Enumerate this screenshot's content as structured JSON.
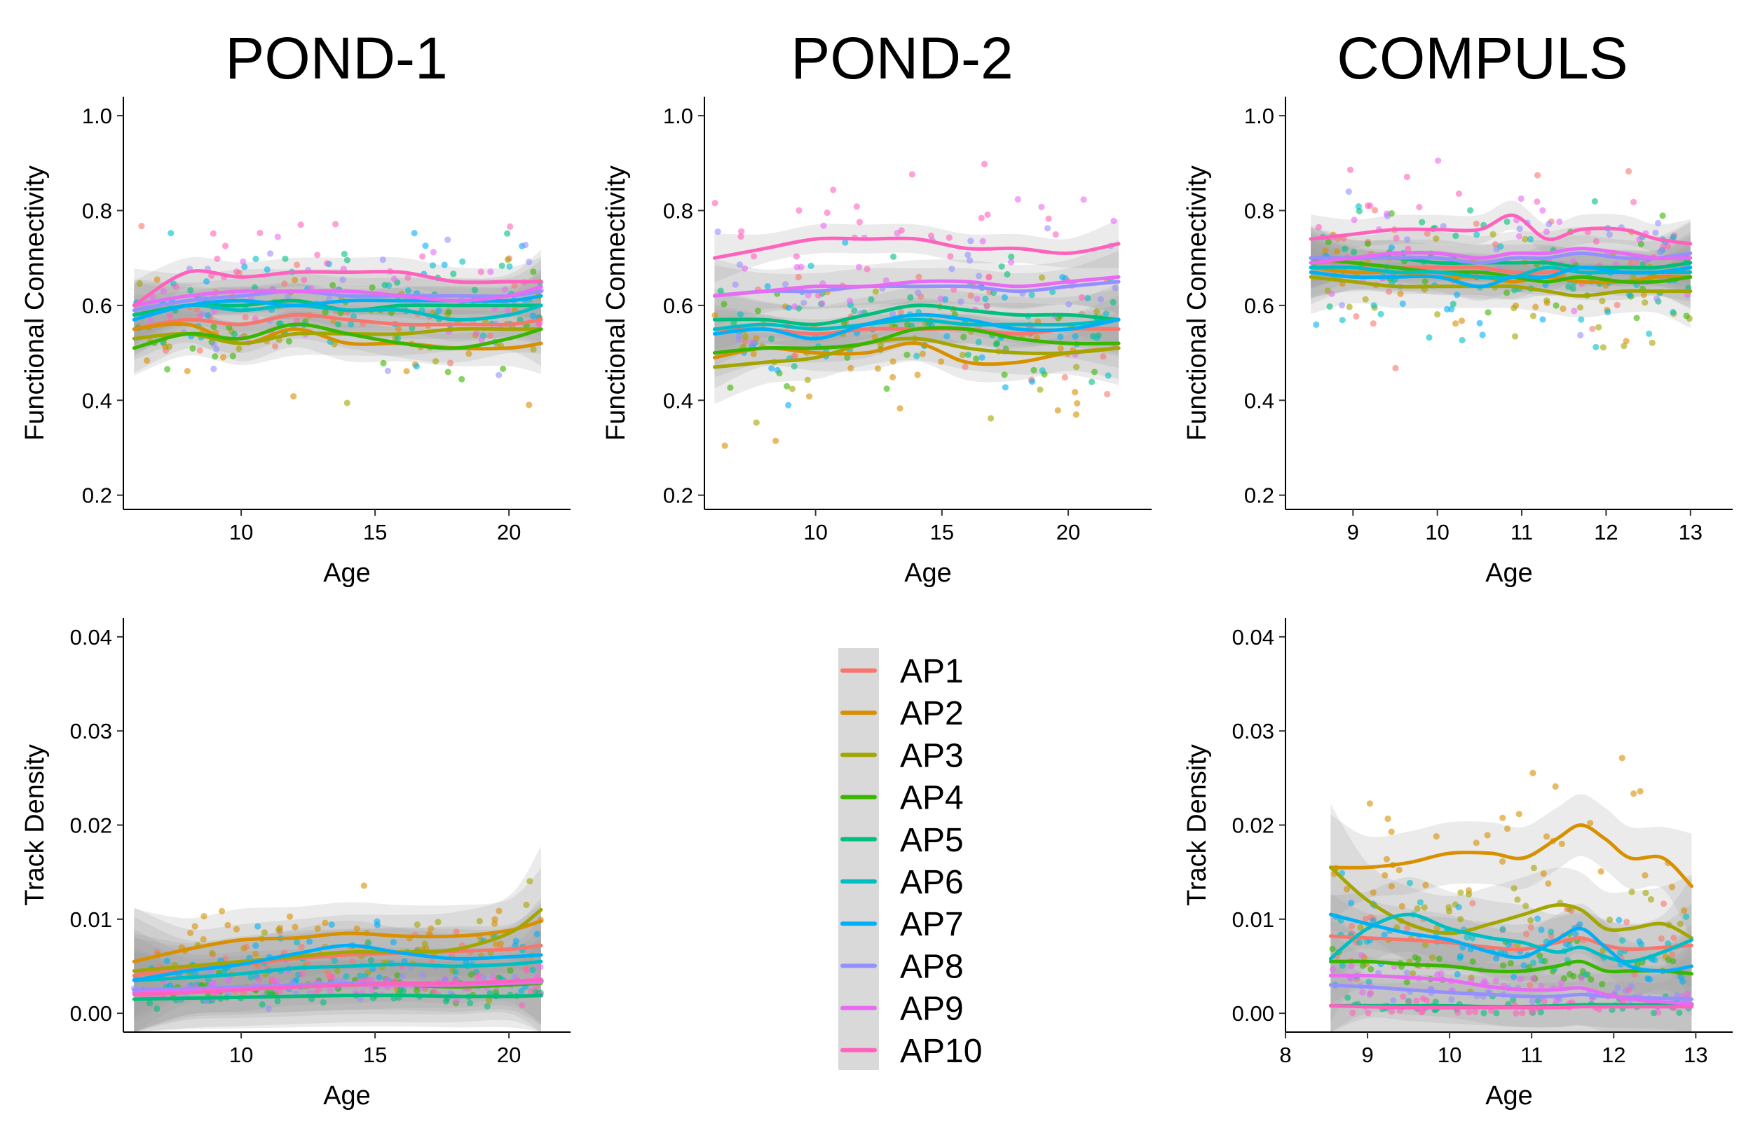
{
  "panel_titles": [
    "POND-1",
    "POND-2",
    "COMPULS"
  ],
  "legend": {
    "entries": [
      {
        "name": "AP1",
        "color": "#F8766D"
      },
      {
        "name": "AP2",
        "color": "#D89000"
      },
      {
        "name": "AP3",
        "color": "#A3A500"
      },
      {
        "name": "AP4",
        "color": "#39B600"
      },
      {
        "name": "AP5",
        "color": "#00BF7D"
      },
      {
        "name": "AP6",
        "color": "#00BFC4"
      },
      {
        "name": "AP7",
        "color": "#00B0F6"
      },
      {
        "name": "AP8",
        "color": "#9590FF"
      },
      {
        "name": "AP9",
        "color": "#E76BF3"
      },
      {
        "name": "AP10",
        "color": "#FF62BC"
      }
    ]
  },
  "chart_data": [
    {
      "id": "pond1-fc",
      "type": "line",
      "title": "POND-1",
      "xlabel": "Age",
      "ylabel": "Functional Connectivity",
      "xlim": [
        5.6,
        22.3
      ],
      "ylim": [
        0.17,
        1.04
      ],
      "xticks": [
        10,
        15,
        20
      ],
      "yticks": [
        0.2,
        0.4,
        0.6,
        0.8,
        1.0
      ],
      "ytick_labels": [
        "0.2",
        "0.4",
        "0.6",
        "0.8",
        "1.0"
      ],
      "grid": false,
      "confidence_band": true,
      "x": [
        6,
        8,
        10,
        12,
        14,
        16,
        18,
        20,
        21.2
      ],
      "series": [
        {
          "name": "AP1",
          "values": [
            0.55,
            0.57,
            0.56,
            0.58,
            0.57,
            0.56,
            0.56,
            0.56,
            0.57
          ]
        },
        {
          "name": "AP2",
          "values": [
            0.55,
            0.56,
            0.52,
            0.55,
            0.52,
            0.52,
            0.51,
            0.51,
            0.52
          ]
        },
        {
          "name": "AP3",
          "values": [
            0.53,
            0.54,
            0.52,
            0.54,
            0.54,
            0.54,
            0.55,
            0.55,
            0.55
          ]
        },
        {
          "name": "AP4",
          "values": [
            0.51,
            0.54,
            0.53,
            0.56,
            0.54,
            0.52,
            0.51,
            0.53,
            0.55
          ]
        },
        {
          "name": "AP5",
          "values": [
            0.58,
            0.6,
            0.6,
            0.61,
            0.59,
            0.6,
            0.6,
            0.6,
            0.6
          ]
        },
        {
          "name": "AP6",
          "values": [
            0.57,
            0.6,
            0.59,
            0.6,
            0.59,
            0.59,
            0.57,
            0.58,
            0.6
          ]
        },
        {
          "name": "AP7",
          "values": [
            0.57,
            0.6,
            0.61,
            0.6,
            0.61,
            0.61,
            0.61,
            0.61,
            0.62
          ]
        },
        {
          "name": "AP8",
          "values": [
            0.59,
            0.61,
            0.62,
            0.63,
            0.62,
            0.62,
            0.62,
            0.62,
            0.63
          ]
        },
        {
          "name": "AP9",
          "values": [
            0.6,
            0.62,
            0.63,
            0.63,
            0.63,
            0.62,
            0.61,
            0.62,
            0.64
          ]
        },
        {
          "name": "AP10",
          "values": [
            0.6,
            0.67,
            0.66,
            0.67,
            0.67,
            0.67,
            0.65,
            0.65,
            0.65
          ]
        }
      ]
    },
    {
      "id": "pond2-fc",
      "type": "line",
      "title": "POND-2",
      "xlabel": "Age",
      "ylabel": "Functional Connectivity",
      "xlim": [
        5.6,
        23.3
      ],
      "ylim": [
        0.17,
        1.04
      ],
      "xticks": [
        10,
        15,
        20
      ],
      "yticks": [
        0.2,
        0.4,
        0.6,
        0.8,
        1.0
      ],
      "ytick_labels": [
        "0.2",
        "0.4",
        "0.6",
        "0.8",
        "1.0"
      ],
      "grid": false,
      "confidence_band": true,
      "x": [
        6,
        8,
        10,
        12,
        14,
        16,
        18,
        20,
        22
      ],
      "series": [
        {
          "name": "AP1",
          "values": [
            0.55,
            0.55,
            0.54,
            0.55,
            0.55,
            0.55,
            0.54,
            0.55,
            0.55
          ]
        },
        {
          "name": "AP2",
          "values": [
            0.49,
            0.51,
            0.5,
            0.5,
            0.52,
            0.48,
            0.48,
            0.5,
            0.51
          ]
        },
        {
          "name": "AP3",
          "values": [
            0.47,
            0.48,
            0.49,
            0.52,
            0.53,
            0.51,
            0.5,
            0.5,
            0.51
          ]
        },
        {
          "name": "AP4",
          "values": [
            0.5,
            0.51,
            0.51,
            0.52,
            0.55,
            0.55,
            0.53,
            0.52,
            0.52
          ]
        },
        {
          "name": "AP5",
          "values": [
            0.57,
            0.57,
            0.56,
            0.58,
            0.6,
            0.59,
            0.58,
            0.58,
            0.57
          ]
        },
        {
          "name": "AP6",
          "values": [
            0.55,
            0.56,
            0.55,
            0.56,
            0.57,
            0.56,
            0.56,
            0.56,
            0.57
          ]
        },
        {
          "name": "AP7",
          "values": [
            0.54,
            0.55,
            0.53,
            0.56,
            0.58,
            0.57,
            0.55,
            0.55,
            0.57
          ]
        },
        {
          "name": "AP8",
          "values": [
            0.62,
            0.63,
            0.63,
            0.64,
            0.64,
            0.64,
            0.63,
            0.64,
            0.65
          ]
        },
        {
          "name": "AP9",
          "values": [
            0.62,
            0.63,
            0.64,
            0.64,
            0.65,
            0.65,
            0.64,
            0.65,
            0.66
          ]
        },
        {
          "name": "AP10",
          "values": [
            0.7,
            0.72,
            0.74,
            0.74,
            0.74,
            0.72,
            0.72,
            0.71,
            0.73
          ]
        }
      ]
    },
    {
      "id": "compuls-fc",
      "type": "line",
      "title": "COMPULS",
      "xlabel": "Age",
      "ylabel": "Functional Connectivity",
      "xlim": [
        8.2,
        13.5
      ],
      "ylim": [
        0.17,
        1.04
      ],
      "xticks": [
        9,
        10,
        11,
        12,
        13
      ],
      "yticks": [
        0.2,
        0.4,
        0.6,
        0.8,
        1.0
      ],
      "ytick_labels": [
        "0.2",
        "0.4",
        "0.6",
        "0.8",
        "1.0"
      ],
      "grid": false,
      "confidence_band": true,
      "x": [
        8.5,
        9,
        9.5,
        10,
        10.5,
        10.9,
        11.3,
        11.7,
        12.2,
        12.6,
        13
      ],
      "series": [
        {
          "name": "AP1",
          "values": [
            0.69,
            0.69,
            0.68,
            0.68,
            0.68,
            0.67,
            0.67,
            0.68,
            0.68,
            0.68,
            0.69
          ]
        },
        {
          "name": "AP2",
          "values": [
            0.68,
            0.67,
            0.67,
            0.66,
            0.66,
            0.65,
            0.66,
            0.65,
            0.65,
            0.66,
            0.66
          ]
        },
        {
          "name": "AP3",
          "values": [
            0.66,
            0.65,
            0.64,
            0.64,
            0.64,
            0.64,
            0.63,
            0.62,
            0.63,
            0.63,
            0.63
          ]
        },
        {
          "name": "AP4",
          "values": [
            0.7,
            0.69,
            0.68,
            0.67,
            0.67,
            0.66,
            0.65,
            0.66,
            0.65,
            0.65,
            0.66
          ]
        },
        {
          "name": "AP5",
          "values": [
            0.7,
            0.7,
            0.7,
            0.69,
            0.69,
            0.69,
            0.69,
            0.68,
            0.68,
            0.68,
            0.69
          ]
        },
        {
          "name": "AP6",
          "values": [
            0.68,
            0.68,
            0.67,
            0.67,
            0.66,
            0.66,
            0.68,
            0.67,
            0.67,
            0.67,
            0.67
          ]
        },
        {
          "name": "AP7",
          "values": [
            0.67,
            0.66,
            0.66,
            0.66,
            0.64,
            0.66,
            0.66,
            0.68,
            0.67,
            0.67,
            0.68
          ]
        },
        {
          "name": "AP8",
          "values": [
            0.7,
            0.7,
            0.7,
            0.7,
            0.69,
            0.7,
            0.7,
            0.71,
            0.7,
            0.7,
            0.71
          ]
        },
        {
          "name": "AP9",
          "values": [
            0.69,
            0.7,
            0.71,
            0.71,
            0.7,
            0.71,
            0.71,
            0.72,
            0.71,
            0.7,
            0.7
          ]
        },
        {
          "name": "AP10",
          "values": [
            0.74,
            0.75,
            0.76,
            0.76,
            0.76,
            0.79,
            0.74,
            0.76,
            0.76,
            0.74,
            0.73
          ]
        }
      ]
    },
    {
      "id": "pond1-td",
      "type": "line",
      "title": "",
      "xlabel": "Age",
      "ylabel": "Track Density",
      "xlim": [
        5.6,
        22.3
      ],
      "ylim": [
        -0.002,
        0.042
      ],
      "xticks": [
        10,
        15,
        20
      ],
      "yticks": [
        0.0,
        0.01,
        0.02,
        0.03,
        0.04
      ],
      "ytick_labels": [
        "0.00",
        "0.01",
        "0.02",
        "0.03",
        "0.04"
      ],
      "grid": false,
      "confidence_band": true,
      "x": [
        6,
        8,
        10,
        12,
        14,
        16,
        18,
        20,
        21.2
      ],
      "series": [
        {
          "name": "AP1",
          "values": [
            0.004,
            0.0048,
            0.0052,
            0.0058,
            0.0062,
            0.0064,
            0.0066,
            0.0068,
            0.0072
          ]
        },
        {
          "name": "AP2",
          "values": [
            0.0055,
            0.0068,
            0.0078,
            0.008,
            0.0085,
            0.0082,
            0.0082,
            0.0088,
            0.0098
          ]
        },
        {
          "name": "AP3",
          "values": [
            0.0045,
            0.005,
            0.0055,
            0.006,
            0.0065,
            0.0065,
            0.0068,
            0.0085,
            0.011
          ]
        },
        {
          "name": "AP4",
          "values": [
            0.0022,
            0.0025,
            0.0027,
            0.0028,
            0.003,
            0.003,
            0.0028,
            0.003,
            0.0032
          ]
        },
        {
          "name": "AP5",
          "values": [
            0.0015,
            0.0016,
            0.0017,
            0.0018,
            0.0019,
            0.0019,
            0.0018,
            0.0018,
            0.0019
          ]
        },
        {
          "name": "AP6",
          "values": [
            0.0035,
            0.0038,
            0.0042,
            0.0048,
            0.005,
            0.0052,
            0.005,
            0.0052,
            0.0055
          ]
        },
        {
          "name": "AP7",
          "values": [
            0.0035,
            0.0045,
            0.0052,
            0.0063,
            0.0072,
            0.0064,
            0.0058,
            0.006,
            0.0062
          ]
        },
        {
          "name": "AP8",
          "values": [
            0.0025,
            0.0026,
            0.0028,
            0.003,
            0.0032,
            0.0032,
            0.0032,
            0.0033,
            0.0034
          ]
        },
        {
          "name": "AP9",
          "values": [
            0.0022,
            0.0024,
            0.0026,
            0.0028,
            0.003,
            0.003,
            0.003,
            0.0032,
            0.0033
          ]
        },
        {
          "name": "AP10",
          "values": [
            0.002,
            0.0022,
            0.0025,
            0.0028,
            0.003,
            0.0032,
            0.0032,
            0.0034,
            0.0036
          ]
        }
      ]
    },
    {
      "id": "compuls-td",
      "type": "line",
      "title": "",
      "xlabel": "Age",
      "ylabel": "Track Density",
      "xlim": [
        8,
        13.45
      ],
      "ylim": [
        -0.002,
        0.042
      ],
      "xticks": [
        8,
        9,
        10,
        11,
        12,
        13
      ],
      "yticks": [
        0.0,
        0.01,
        0.02,
        0.03,
        0.04
      ],
      "ytick_labels": [
        "0.00",
        "0.01",
        "0.02",
        "0.03",
        "0.04"
      ],
      "grid": false,
      "confidence_band": true,
      "x": [
        8.55,
        9,
        9.5,
        10,
        10.5,
        10.9,
        11.3,
        11.6,
        11.9,
        12.2,
        12.6,
        12.95
      ],
      "series": [
        {
          "name": "AP1",
          "values": [
            0.0082,
            0.008,
            0.0078,
            0.0075,
            0.007,
            0.0068,
            0.0075,
            0.008,
            0.0072,
            0.0068,
            0.007,
            0.0072
          ]
        },
        {
          "name": "AP2",
          "values": [
            0.0155,
            0.0155,
            0.016,
            0.017,
            0.017,
            0.0165,
            0.0185,
            0.02,
            0.0185,
            0.0165,
            0.0165,
            0.0135
          ]
        },
        {
          "name": "AP3",
          "values": [
            0.0155,
            0.012,
            0.0095,
            0.0085,
            0.0095,
            0.0105,
            0.0115,
            0.011,
            0.009,
            0.009,
            0.0095,
            0.008
          ]
        },
        {
          "name": "AP4",
          "values": [
            0.0055,
            0.0055,
            0.0052,
            0.005,
            0.0045,
            0.0045,
            0.005,
            0.0055,
            0.0045,
            0.0045,
            0.0045,
            0.0042
          ]
        },
        {
          "name": "AP5",
          "values": [
            0.0008,
            0.0008,
            0.0008,
            0.0008,
            0.0007,
            0.0007,
            0.0008,
            0.0009,
            0.0009,
            0.0009,
            0.0009,
            0.0009
          ]
        },
        {
          "name": "AP6",
          "values": [
            0.0058,
            0.009,
            0.0105,
            0.009,
            0.008,
            0.0075,
            0.0065,
            0.007,
            0.006,
            0.0055,
            0.0065,
            0.0078
          ]
        },
        {
          "name": "AP7",
          "values": [
            0.0105,
            0.0095,
            0.0085,
            0.0078,
            0.0065,
            0.006,
            0.0078,
            0.009,
            0.007,
            0.005,
            0.0045,
            0.005
          ]
        },
        {
          "name": "AP8",
          "values": [
            0.003,
            0.0028,
            0.0025,
            0.0022,
            0.002,
            0.0018,
            0.0018,
            0.002,
            0.0018,
            0.0017,
            0.0016,
            0.0015
          ]
        },
        {
          "name": "AP9",
          "values": [
            0.004,
            0.004,
            0.0038,
            0.0035,
            0.0028,
            0.0025,
            0.0025,
            0.0027,
            0.002,
            0.0015,
            0.0012,
            0.001
          ]
        },
        {
          "name": "AP10",
          "values": [
            0.0008,
            0.0007,
            0.0006,
            0.0006,
            0.0006,
            0.0006,
            0.0006,
            0.0007,
            0.0007,
            0.0007,
            0.0007,
            0.0007
          ]
        }
      ]
    }
  ]
}
